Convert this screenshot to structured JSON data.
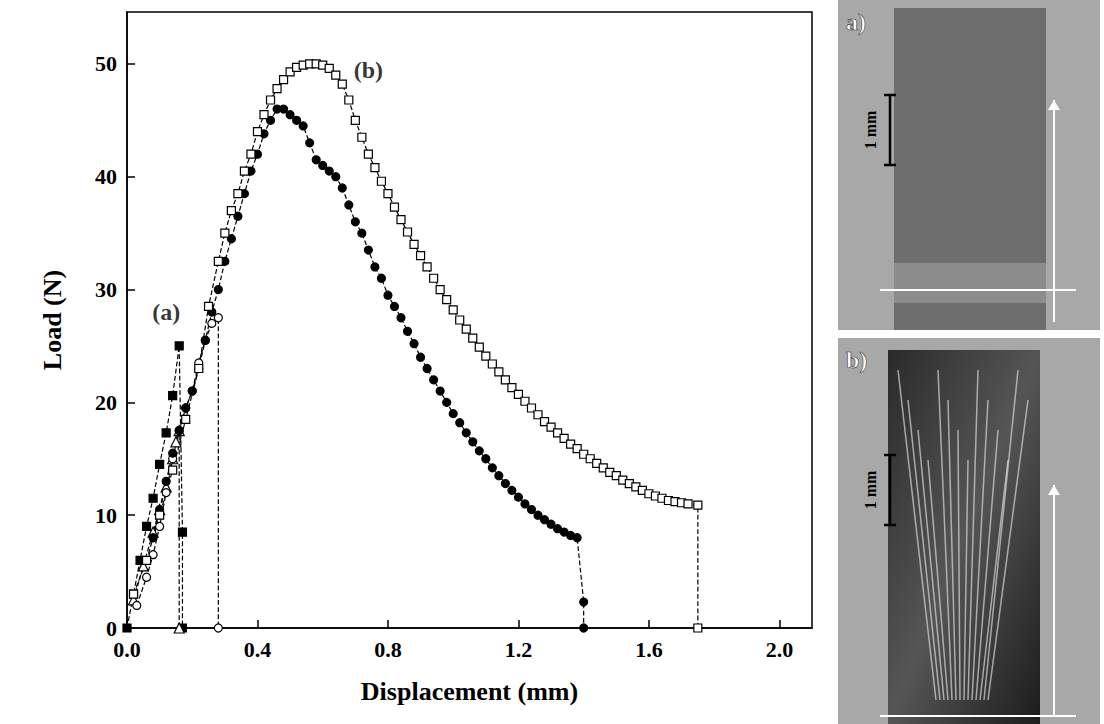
{
  "chart_data": {
    "type": "line",
    "x_label": "Displacement (mm)",
    "y_label": "Load (N)",
    "xlim": [
      0,
      2.1
    ],
    "xticks": [
      {
        "value": 0,
        "label": "0.0"
      },
      0.4,
      0.8,
      1.2,
      1.6,
      {
        "value": 2,
        "label": "2.0"
      }
    ],
    "ylim": [
      0,
      54.6
    ],
    "yticks": [
      0,
      10,
      20,
      30,
      40,
      50
    ],
    "grid": false,
    "line_style": "dashed",
    "color": "#000000",
    "annotations": [
      {
        "text": "(a)",
        "x": 0.12,
        "y": 28
      },
      {
        "text": "(b)",
        "x": 0.74,
        "y": 49.5
      }
    ],
    "series": [
      {
        "marker": "square_filled",
        "x": [
          0,
          0.02,
          0.04,
          0.06,
          0.08,
          0.1,
          0.12,
          0.14,
          0.16,
          0.17,
          0.17
        ],
        "values": [
          0,
          3,
          6,
          9,
          11.5,
          14.5,
          17.3,
          20.6,
          25,
          8.5,
          0
        ]
      },
      {
        "marker": "triangle_open",
        "x": [
          0.02,
          0.05,
          0.08,
          0.1,
          0.12,
          0.14,
          0.15,
          0.16,
          0.16
        ],
        "values": [
          2.5,
          5.5,
          8.5,
          10.5,
          12.5,
          15,
          16.5,
          17.5,
          0
        ]
      },
      {
        "marker": "circle_open",
        "x": [
          0.03,
          0.06,
          0.08,
          0.1,
          0.12,
          0.14,
          0.16,
          0.18,
          0.2,
          0.22,
          0.24,
          0.26,
          0.28,
          0.28
        ],
        "values": [
          2,
          4.5,
          6.5,
          9,
          12,
          15,
          17.5,
          19.5,
          21,
          23.5,
          25.5,
          27,
          27.5,
          0
        ]
      },
      {
        "marker": "circle_filled",
        "x": [
          0.08,
          0.1,
          0.12,
          0.14,
          0.16,
          0.18,
          0.2,
          0.22,
          0.24,
          0.26,
          0.28,
          0.3,
          0.32,
          0.34,
          0.36,
          0.38,
          0.4,
          0.42,
          0.44,
          0.46,
          0.48,
          0.5,
          0.52,
          0.54,
          0.56,
          0.58,
          0.6,
          0.62,
          0.64,
          0.66,
          0.68,
          0.7,
          0.72,
          0.74,
          0.76,
          0.78,
          0.8,
          0.82,
          0.84,
          0.86,
          0.88,
          0.9,
          0.92,
          0.94,
          0.96,
          0.98,
          1,
          1.02,
          1.04,
          1.06,
          1.08,
          1.1,
          1.12,
          1.14,
          1.16,
          1.18,
          1.2,
          1.22,
          1.24,
          1.26,
          1.28,
          1.3,
          1.32,
          1.34,
          1.36,
          1.38,
          1.4,
          1.4
        ],
        "values": [
          8,
          10.5,
          13,
          15.5,
          17.5,
          19.5,
          21,
          23,
          25.5,
          28,
          30,
          32.5,
          34.5,
          36.5,
          38.5,
          40.5,
          42,
          43.8,
          45,
          46,
          46,
          45.5,
          45,
          44.5,
          43,
          41.5,
          41,
          40.5,
          40,
          39,
          37.5,
          36,
          35,
          33.5,
          32,
          31,
          29.5,
          28.5,
          27.5,
          26.3,
          25.2,
          24,
          23,
          22,
          21,
          20,
          19,
          18.2,
          17.3,
          16.5,
          15.7,
          15,
          14.2,
          13.5,
          12.8,
          12.2,
          11.6,
          11,
          10.5,
          10,
          9.6,
          9.2,
          8.8,
          8.5,
          8.2,
          8,
          2.3,
          0
        ]
      },
      {
        "marker": "square_open",
        "x": [
          0.02,
          0.06,
          0.1,
          0.14,
          0.18,
          0.22,
          0.25,
          0.28,
          0.3,
          0.32,
          0.34,
          0.36,
          0.38,
          0.4,
          0.42,
          0.44,
          0.46,
          0.48,
          0.5,
          0.52,
          0.54,
          0.56,
          0.58,
          0.6,
          0.62,
          0.64,
          0.66,
          0.68,
          0.7,
          0.72,
          0.74,
          0.76,
          0.78,
          0.8,
          0.82,
          0.84,
          0.86,
          0.88,
          0.9,
          0.92,
          0.94,
          0.96,
          0.98,
          1,
          1.02,
          1.04,
          1.06,
          1.08,
          1.1,
          1.12,
          1.14,
          1.16,
          1.18,
          1.2,
          1.22,
          1.24,
          1.26,
          1.28,
          1.3,
          1.32,
          1.34,
          1.36,
          1.38,
          1.4,
          1.42,
          1.44,
          1.46,
          1.48,
          1.5,
          1.52,
          1.54,
          1.56,
          1.58,
          1.6,
          1.62,
          1.64,
          1.66,
          1.68,
          1.7,
          1.72,
          1.75,
          1.75
        ],
        "values": [
          3,
          6,
          10,
          14,
          18.5,
          23,
          28.5,
          32.5,
          35,
          37,
          38.5,
          40.5,
          42,
          44,
          45.5,
          46.8,
          47.8,
          48.6,
          49.3,
          49.7,
          49.9,
          50,
          50,
          49.9,
          49.6,
          49,
          48.2,
          46.8,
          45,
          43.5,
          42,
          40.8,
          39.6,
          38.5,
          37.3,
          36.2,
          35.1,
          34,
          33,
          32,
          31,
          30,
          29.1,
          28.2,
          27.3,
          26.5,
          25.7,
          24.9,
          24.1,
          23.4,
          22.7,
          22,
          21.3,
          20.7,
          20.1,
          19.5,
          18.9,
          18.3,
          17.8,
          17.3,
          16.8,
          16.3,
          15.9,
          15.4,
          15,
          14.6,
          14.2,
          13.8,
          13.5,
          13.1,
          12.8,
          12.5,
          12.2,
          11.9,
          11.7,
          11.5,
          11.3,
          11.2,
          11.1,
          11,
          10.9,
          0
        ]
      }
    ]
  },
  "photos": [
    {
      "label": "a)",
      "scale_bar": "1 mm"
    },
    {
      "label": "b)",
      "scale_bar": "1 mm"
    }
  ]
}
